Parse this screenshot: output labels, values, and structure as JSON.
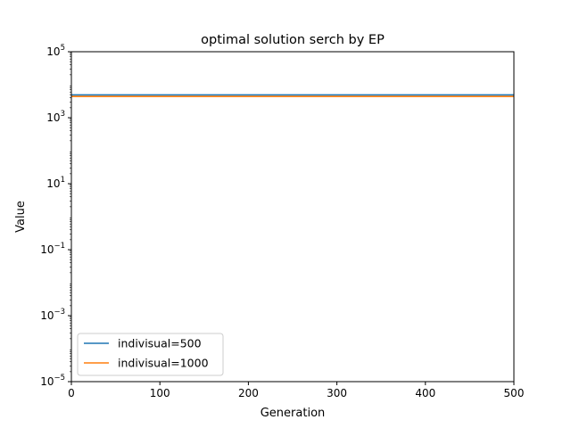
{
  "chart_data": {
    "type": "line",
    "title": "optimal solution serch by EP",
    "xlabel": "Generation",
    "ylabel": "Value",
    "xlim": [
      0,
      500
    ],
    "ylim_exponent": [
      -5,
      5
    ],
    "yscale": "log",
    "xticks": [
      0,
      100,
      200,
      300,
      400,
      500
    ],
    "yticks": [
      {
        "base": "10",
        "exp": "5",
        "value": 100000
      },
      {
        "base": "10",
        "exp": "3",
        "value": 1000
      },
      {
        "base": "10",
        "exp": "1",
        "value": 10
      },
      {
        "base": "10",
        "exp": "−1",
        "value": 0.1
      },
      {
        "base": "10",
        "exp": "−3",
        "value": 0.001
      },
      {
        "base": "10",
        "exp": "−5",
        "value": 1e-05
      }
    ],
    "grid": false,
    "legend_position": "lower-left",
    "series": [
      {
        "name": "indivisual=500",
        "color": "#1f77b4",
        "x": [
          0,
          500
        ],
        "y": [
          4900,
          4900
        ]
      },
      {
        "name": "indivisual=1000",
        "color": "#ff7f0e",
        "x": [
          0,
          500
        ],
        "y": [
          4400,
          4400
        ]
      }
    ]
  }
}
